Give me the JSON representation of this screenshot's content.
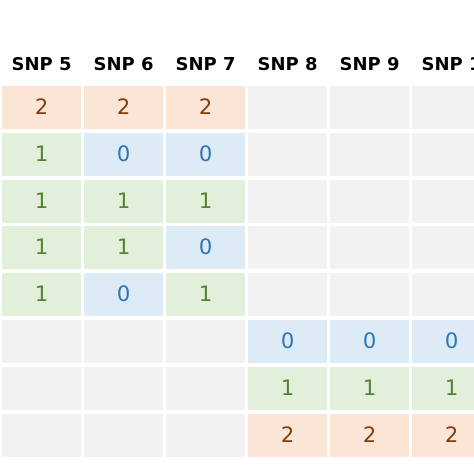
{
  "table": {
    "columns": [
      "SNP 5",
      "SNP 6",
      "SNP 7",
      "SNP 8",
      "SNP 9",
      "SNP 1"
    ],
    "rows": [
      [
        2,
        2,
        2,
        null,
        null,
        null
      ],
      [
        1,
        0,
        0,
        null,
        null,
        null
      ],
      [
        1,
        1,
        1,
        null,
        null,
        null
      ],
      [
        1,
        1,
        0,
        null,
        null,
        null
      ],
      [
        1,
        0,
        1,
        null,
        null,
        null
      ],
      [
        null,
        null,
        null,
        0,
        0,
        0
      ],
      [
        null,
        null,
        null,
        1,
        1,
        1
      ],
      [
        null,
        null,
        null,
        2,
        2,
        2
      ]
    ]
  }
}
